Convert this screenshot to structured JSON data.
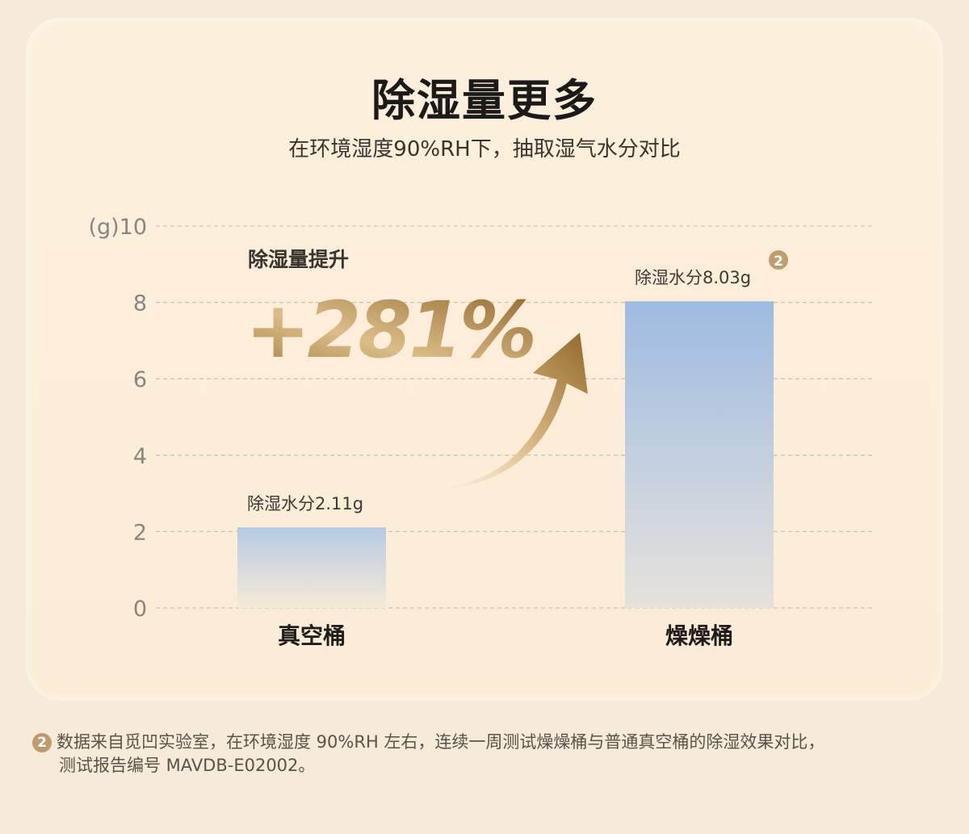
{
  "title": "除湿量更多",
  "subtitle": "在环境湿度90%RH下，抽取湿气水分对比",
  "chart_data": {
    "type": "bar",
    "categories": [
      "真空桶",
      "燥燥桶"
    ],
    "values": [
      2.11,
      8.03
    ],
    "data_labels": [
      "除湿水分2.11g",
      "除湿水分8.03g"
    ],
    "ylabel": "(g)",
    "ylim": [
      0,
      10
    ],
    "yticks": [
      "0",
      "2",
      "4",
      "6",
      "8",
      "10"
    ],
    "grid": true,
    "bar_colors": [
      "#a0bde0",
      "#f3e6d2"
    ],
    "annotation_label": "除湿量提升",
    "annotation_value": "+281%",
    "footnote_marker": "2"
  },
  "footnote": {
    "marker": "2",
    "line1": "数据来自觅凹实验室，在环境湿度 90%RH 左右，连续一周测试燥燥桶与普通真空桶的除湿效果对比，",
    "line2": "测试报告编号 MAVDB-E02002。"
  }
}
